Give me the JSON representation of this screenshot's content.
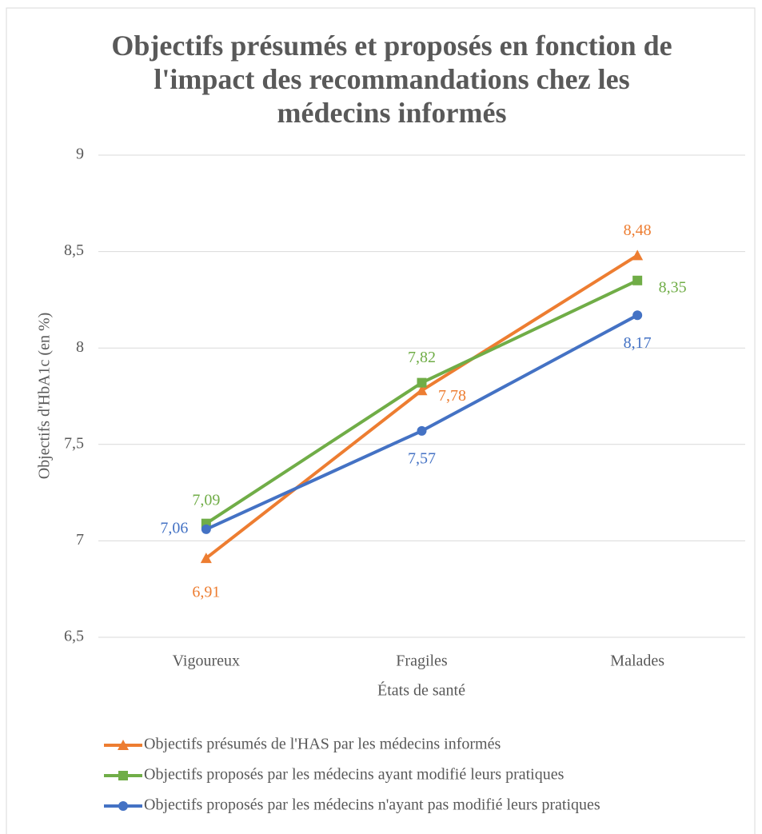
{
  "chart_data": {
    "type": "line",
    "title": "Objectifs présumés et proposés en fonction de l'impact des recommandations chez les médecins informés",
    "xlabel": "États de santé",
    "ylabel": "Objectifs d'HbA1c (en %)",
    "categories": [
      "Vigoureux",
      "Fragiles",
      "Malades"
    ],
    "series": [
      {
        "name": "Objectifs présumés de l'HAS par les médecins informés",
        "color": "#ED7D31",
        "marker": "triangle",
        "values": [
          6.91,
          7.78,
          8.48
        ],
        "value_labels": [
          "6,91",
          "7,78",
          "8,48"
        ]
      },
      {
        "name": "Objectifs proposés par les médecins ayant modifié leurs pratiques",
        "color": "#70AD47",
        "marker": "square",
        "values": [
          7.09,
          7.82,
          8.35
        ],
        "value_labels": [
          "7,09",
          "7,82",
          "8,35"
        ]
      },
      {
        "name": "Objectifs proposés par les médecins n'ayant pas modifié leurs pratiques",
        "color": "#4472C4",
        "marker": "circle",
        "values": [
          7.06,
          7.57,
          8.17
        ],
        "value_labels": [
          "7,06",
          "7,57",
          "8,17"
        ]
      }
    ],
    "ylim": [
      6.5,
      9
    ],
    "yticks": [
      {
        "value": 6.5,
        "label": "6,5"
      },
      7,
      {
        "value": 7.5,
        "label": "7,5"
      },
      8,
      {
        "value": 8.5,
        "label": "8,5"
      },
      9
    ],
    "grid": true,
    "legend": "bottom"
  }
}
